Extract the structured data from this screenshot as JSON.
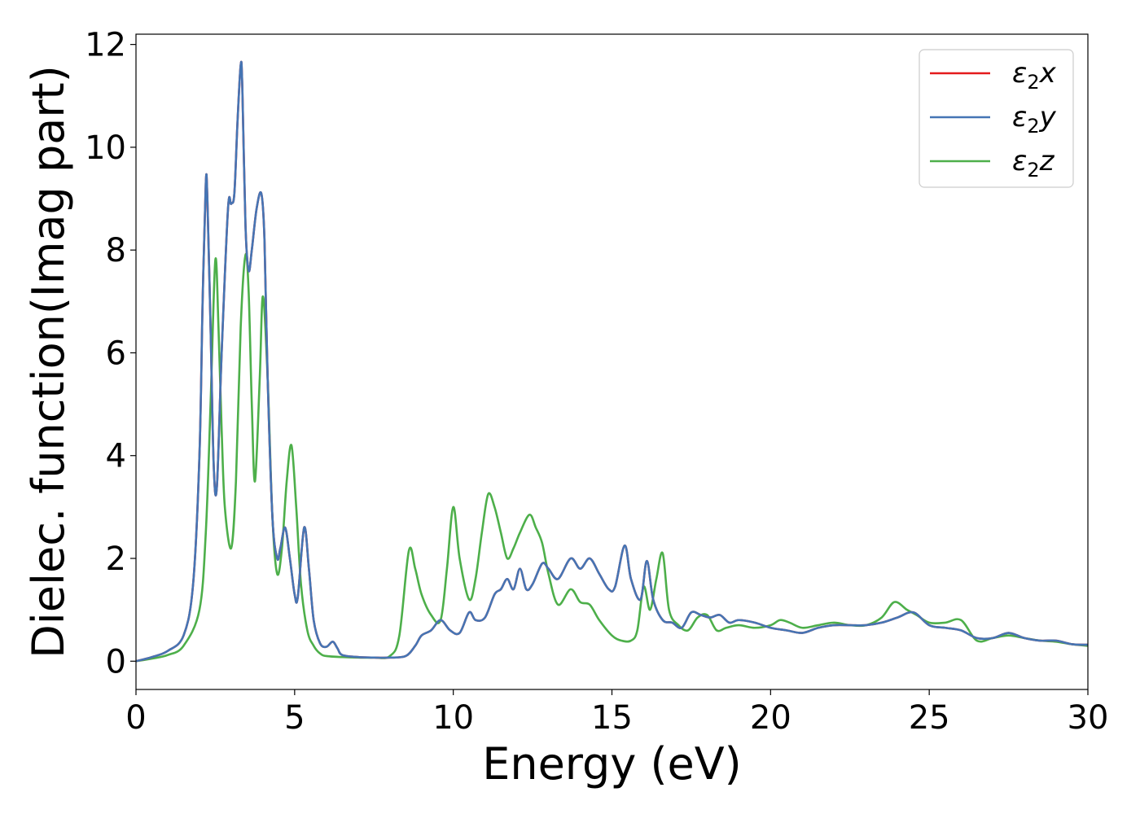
{
  "chart_data": {
    "type": "line",
    "xlabel": "Energy (eV)",
    "ylabel": "Dielec. function(Imag part)",
    "xlim": [
      0,
      30
    ],
    "ylim": [
      -0.55,
      12.2
    ],
    "xticks": [
      0,
      5,
      10,
      15,
      20,
      25,
      30
    ],
    "yticks": [
      0,
      2,
      4,
      6,
      8,
      10,
      12
    ],
    "grid": false,
    "legend_position": "top-right",
    "series": [
      {
        "name": "ε₂x",
        "legend_base": "ε",
        "legend_sub": "2",
        "legend_suffix": "x",
        "color": "#e41a1c",
        "x": [
          0,
          0.5,
          1,
          1.5,
          1.8,
          2,
          2.1,
          2.2,
          2.25,
          2.35,
          2.45,
          2.55,
          2.7,
          2.9,
          3.0,
          3.1,
          3.2,
          3.3,
          3.35,
          3.45,
          3.55,
          3.65,
          3.8,
          3.95,
          4.05,
          4.15,
          4.3,
          4.45,
          4.55,
          4.7,
          4.85,
          5.0,
          5.1,
          5.3,
          5.45,
          5.6,
          5.8,
          6.0,
          6.2,
          6.35,
          6.5,
          7,
          7.5,
          8,
          8.5,
          8.8,
          9.0,
          9.3,
          9.6,
          9.9,
          10.2,
          10.5,
          10.7,
          11.0,
          11.3,
          11.5,
          11.7,
          11.9,
          12.1,
          12.3,
          12.5,
          12.8,
          13.0,
          13.3,
          13.7,
          14.0,
          14.3,
          14.6,
          14.9,
          15.1,
          15.4,
          15.6,
          15.9,
          16.1,
          16.3,
          16.6,
          16.9,
          17.2,
          17.5,
          17.8,
          18.1,
          18.4,
          18.7,
          19.0,
          19.5,
          20.0,
          20.5,
          21.0,
          21.5,
          22.0,
          22.5,
          23.0,
          23.5,
          24.0,
          24.5,
          25.0,
          25.5,
          26.0,
          26.5,
          27.0,
          27.5,
          28.0,
          28.5,
          29.0,
          29.5,
          30.0
        ],
        "y": [
          0,
          0.08,
          0.2,
          0.5,
          1.5,
          4.0,
          7.0,
          9.3,
          9.0,
          6.5,
          3.8,
          3.4,
          6.0,
          8.8,
          8.9,
          9.1,
          10.5,
          11.6,
          11.2,
          8.5,
          7.6,
          8.0,
          8.8,
          9.1,
          8.2,
          5.5,
          2.8,
          2.0,
          2.2,
          2.6,
          2.0,
          1.3,
          1.25,
          2.6,
          1.8,
          0.8,
          0.35,
          0.28,
          0.38,
          0.25,
          0.12,
          0.08,
          0.07,
          0.07,
          0.1,
          0.3,
          0.5,
          0.6,
          0.8,
          0.6,
          0.55,
          0.95,
          0.8,
          0.85,
          1.3,
          1.4,
          1.6,
          1.4,
          1.8,
          1.4,
          1.5,
          1.9,
          1.8,
          1.6,
          2.0,
          1.8,
          2.0,
          1.7,
          1.4,
          1.45,
          2.25,
          1.6,
          1.2,
          1.95,
          1.2,
          0.8,
          0.75,
          0.65,
          0.95,
          0.9,
          0.85,
          0.9,
          0.75,
          0.8,
          0.75,
          0.65,
          0.6,
          0.55,
          0.65,
          0.7,
          0.7,
          0.7,
          0.75,
          0.85,
          0.95,
          0.7,
          0.65,
          0.6,
          0.45,
          0.45,
          0.55,
          0.45,
          0.4,
          0.4,
          0.33,
          0.32
        ]
      },
      {
        "name": "ε₂y",
        "legend_base": "ε",
        "legend_sub": "2",
        "legend_suffix": "y",
        "color": "#4575b4",
        "x": [
          0,
          0.5,
          1,
          1.5,
          1.8,
          2,
          2.1,
          2.2,
          2.25,
          2.35,
          2.45,
          2.55,
          2.7,
          2.9,
          3.0,
          3.1,
          3.2,
          3.3,
          3.35,
          3.45,
          3.55,
          3.65,
          3.8,
          3.95,
          4.05,
          4.15,
          4.3,
          4.45,
          4.55,
          4.7,
          4.85,
          5.0,
          5.1,
          5.3,
          5.45,
          5.6,
          5.8,
          6.0,
          6.2,
          6.35,
          6.5,
          7,
          7.5,
          8,
          8.5,
          8.8,
          9.0,
          9.3,
          9.6,
          9.9,
          10.2,
          10.5,
          10.7,
          11.0,
          11.3,
          11.5,
          11.7,
          11.9,
          12.1,
          12.3,
          12.5,
          12.8,
          13.0,
          13.3,
          13.7,
          14.0,
          14.3,
          14.6,
          14.9,
          15.1,
          15.4,
          15.6,
          15.9,
          16.1,
          16.3,
          16.6,
          16.9,
          17.2,
          17.5,
          17.8,
          18.1,
          18.4,
          18.7,
          19.0,
          19.5,
          20.0,
          20.5,
          21.0,
          21.5,
          22.0,
          22.5,
          23.0,
          23.5,
          24.0,
          24.5,
          25.0,
          25.5,
          26.0,
          26.5,
          27.0,
          27.5,
          28.0,
          28.5,
          29.0,
          29.5,
          30.0
        ],
        "y": [
          0,
          0.08,
          0.2,
          0.5,
          1.5,
          4.0,
          7.0,
          9.3,
          9.0,
          6.5,
          3.8,
          3.4,
          6.0,
          8.8,
          8.9,
          9.1,
          10.5,
          11.6,
          11.2,
          8.5,
          7.6,
          8.0,
          8.8,
          9.1,
          8.2,
          5.5,
          2.8,
          2.0,
          2.2,
          2.6,
          2.0,
          1.3,
          1.25,
          2.6,
          1.8,
          0.8,
          0.35,
          0.28,
          0.38,
          0.25,
          0.12,
          0.08,
          0.07,
          0.07,
          0.1,
          0.3,
          0.5,
          0.6,
          0.8,
          0.6,
          0.55,
          0.95,
          0.8,
          0.85,
          1.3,
          1.4,
          1.6,
          1.4,
          1.8,
          1.4,
          1.5,
          1.9,
          1.8,
          1.6,
          2.0,
          1.8,
          2.0,
          1.7,
          1.4,
          1.45,
          2.25,
          1.6,
          1.2,
          1.95,
          1.2,
          0.8,
          0.75,
          0.65,
          0.95,
          0.9,
          0.85,
          0.9,
          0.75,
          0.8,
          0.75,
          0.65,
          0.6,
          0.55,
          0.65,
          0.7,
          0.7,
          0.7,
          0.75,
          0.85,
          0.95,
          0.7,
          0.65,
          0.6,
          0.45,
          0.45,
          0.55,
          0.45,
          0.4,
          0.4,
          0.33,
          0.32
        ]
      },
      {
        "name": "ε₂z",
        "legend_base": "ε",
        "legend_sub": "2",
        "legend_suffix": "z",
        "color": "#4daf4a",
        "x": [
          0,
          0.5,
          1,
          1.5,
          2.0,
          2.2,
          2.35,
          2.5,
          2.6,
          2.7,
          2.8,
          3.0,
          3.15,
          3.3,
          3.45,
          3.55,
          3.65,
          3.75,
          3.9,
          4.0,
          4.15,
          4.3,
          4.45,
          4.6,
          4.75,
          4.9,
          5.05,
          5.2,
          5.4,
          5.6,
          5.8,
          6.0,
          6.5,
          7,
          7.5,
          8,
          8.3,
          8.6,
          8.8,
          9.0,
          9.3,
          9.6,
          9.8,
          10.0,
          10.2,
          10.5,
          10.7,
          10.9,
          11.1,
          11.3,
          11.5,
          11.7,
          11.9,
          12.1,
          12.4,
          12.6,
          12.8,
          13.0,
          13.3,
          13.7,
          14.0,
          14.3,
          14.6,
          15.0,
          15.3,
          15.6,
          15.8,
          16.0,
          16.2,
          16.4,
          16.6,
          16.8,
          17.1,
          17.4,
          17.7,
          18.0,
          18.3,
          18.6,
          19.0,
          19.5,
          20.0,
          20.3,
          20.6,
          21.0,
          21.5,
          22.0,
          22.5,
          23.0,
          23.5,
          23.9,
          24.3,
          24.6,
          25.0,
          25.5,
          26.0,
          26.5,
          27.0,
          27.5,
          28.0,
          28.5,
          29.0,
          29.5,
          30.0
        ],
        "y": [
          0,
          0.05,
          0.12,
          0.3,
          1.0,
          2.5,
          5.0,
          7.8,
          6.5,
          4.5,
          3.0,
          2.2,
          3.5,
          6.5,
          7.9,
          7.2,
          5.0,
          3.5,
          5.5,
          7.1,
          5.5,
          2.8,
          1.7,
          2.2,
          3.5,
          4.2,
          3.0,
          1.5,
          0.6,
          0.3,
          0.15,
          0.1,
          0.08,
          0.07,
          0.07,
          0.1,
          0.5,
          2.15,
          1.8,
          1.3,
          0.9,
          0.8,
          1.8,
          3.0,
          2.0,
          1.2,
          1.6,
          2.5,
          3.25,
          3.0,
          2.5,
          2.0,
          2.2,
          2.5,
          2.85,
          2.6,
          2.3,
          1.7,
          1.1,
          1.4,
          1.15,
          1.1,
          0.8,
          0.5,
          0.4,
          0.4,
          0.6,
          1.45,
          1.0,
          1.6,
          2.1,
          1.0,
          0.7,
          0.6,
          0.85,
          0.9,
          0.6,
          0.65,
          0.7,
          0.65,
          0.7,
          0.8,
          0.75,
          0.65,
          0.7,
          0.75,
          0.7,
          0.7,
          0.85,
          1.15,
          1.0,
          0.9,
          0.75,
          0.75,
          0.8,
          0.4,
          0.45,
          0.5,
          0.45,
          0.4,
          0.38,
          0.33,
          0.3
        ]
      }
    ]
  }
}
